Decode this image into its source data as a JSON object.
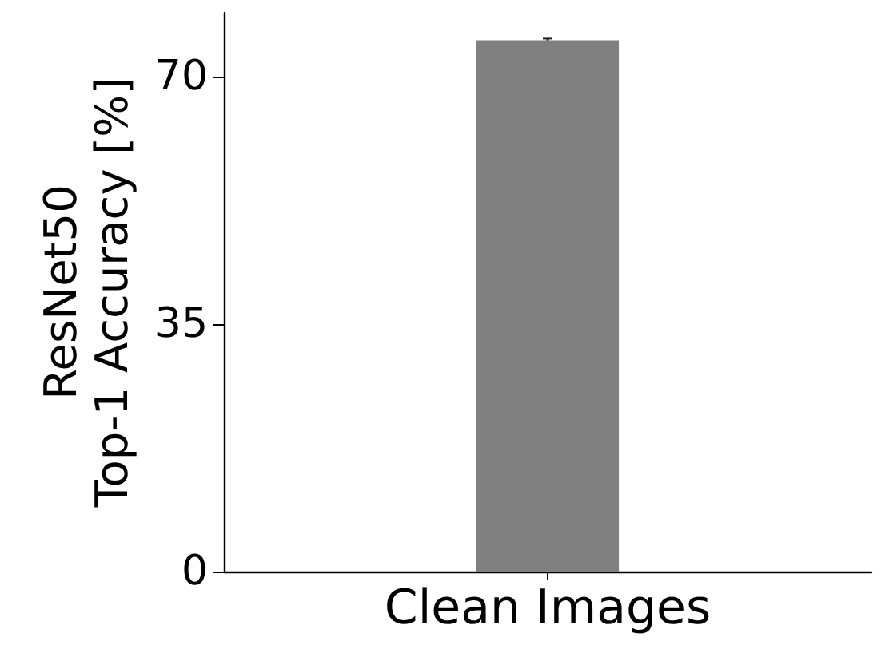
{
  "chart_data": {
    "type": "bar",
    "ylabel": "ResNet50\nTop-1 Accuracy [%]",
    "categories": [
      "Clean Images"
    ],
    "values": [
      75.1
    ],
    "errors": [
      0.3
    ],
    "color": "#808080",
    "ylim": [
      0,
      79
    ],
    "yticks": [
      0,
      35,
      70
    ],
    "grid": false
  }
}
